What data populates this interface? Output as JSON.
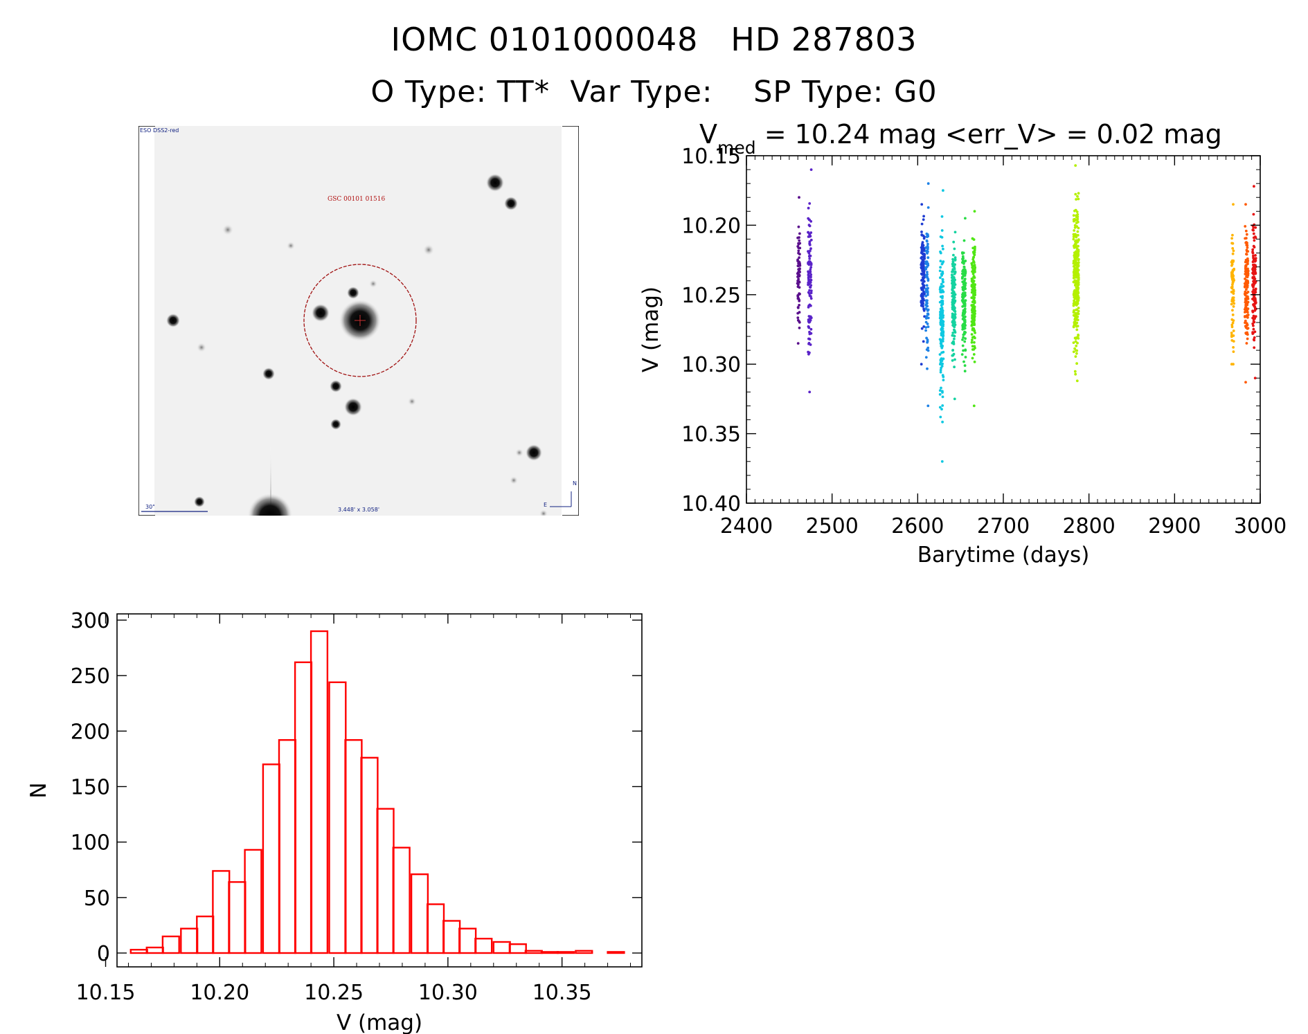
{
  "header": {
    "line1": "IOMC 0101000048   HD 287803",
    "line2": "O Type: TT*  Var Type:    SP Type: G0"
  },
  "image_panel": {
    "survey_label": "ESO DSS2-red",
    "target_label": "GSC 00101 01516",
    "scale_label": "30\"",
    "fov_label": "3.448' x 3.058'",
    "compass_n": "N",
    "compass_e": "E"
  },
  "colors": {
    "histogram": "#ff0000",
    "axis": "#000000",
    "circle": "#a01010",
    "annotation": "#102080"
  },
  "chart_data": [
    {
      "type": "scatter",
      "title": "V_med = 10.24 mag <err_V> = 0.02 mag",
      "title_parts": {
        "v": "V",
        "sub": "med",
        "rest": " = 10.24 mag <err_V> = 0.02 mag"
      },
      "xlabel": "Barytime (days)",
      "ylabel": "V (mag)",
      "xlim": [
        2400,
        3000
      ],
      "ylim": [
        10.4,
        10.15
      ],
      "y_inverted": true,
      "xticks": [
        2400,
        2500,
        2600,
        2700,
        2800,
        2900,
        3000
      ],
      "yticks": [
        "10.15",
        "10.20",
        "10.25",
        "10.30",
        "10.35",
        "10.40"
      ],
      "clusters": [
        {
          "x_center": 2461,
          "x_spread": 1.5,
          "y_min": 10.18,
          "y_max": 10.285,
          "y_center": 10.235,
          "n": 70,
          "color": "#5a0f8c"
        },
        {
          "x_center": 2474,
          "x_spread": 2.0,
          "y_min": 10.16,
          "y_max": 10.32,
          "y_center": 10.24,
          "n": 110,
          "color": "#5a23c8"
        },
        {
          "x_center": 2606,
          "x_spread": 2.0,
          "y_min": 10.185,
          "y_max": 10.3,
          "y_center": 10.235,
          "n": 130,
          "color": "#1e3cd2"
        },
        {
          "x_center": 2611,
          "x_spread": 1.5,
          "y_min": 10.17,
          "y_max": 10.33,
          "y_center": 10.245,
          "n": 90,
          "color": "#1e82e6"
        },
        {
          "x_center": 2628,
          "x_spread": 2.0,
          "y_min": 10.175,
          "y_max": 10.37,
          "y_center": 10.265,
          "n": 150,
          "color": "#0fc8e1"
        },
        {
          "x_center": 2642,
          "x_spread": 2.0,
          "y_min": 10.205,
          "y_max": 10.325,
          "y_center": 10.255,
          "n": 150,
          "color": "#14d2a0"
        },
        {
          "x_center": 2654,
          "x_spread": 2.0,
          "y_min": 10.195,
          "y_max": 10.305,
          "y_center": 10.255,
          "n": 150,
          "color": "#28dc46"
        },
        {
          "x_center": 2665,
          "x_spread": 2.0,
          "y_min": 10.19,
          "y_max": 10.33,
          "y_center": 10.255,
          "n": 150,
          "color": "#50e614"
        },
        {
          "x_center": 2785,
          "x_spread": 3.0,
          "y_min": 10.157,
          "y_max": 10.312,
          "y_center": 10.24,
          "n": 300,
          "color": "#b4f000"
        },
        {
          "x_center": 2968,
          "x_spread": 1.5,
          "y_min": 10.185,
          "y_max": 10.3,
          "y_center": 10.25,
          "n": 80,
          "color": "#ffb400"
        },
        {
          "x_center": 2984,
          "x_spread": 2.0,
          "y_min": 10.185,
          "y_max": 10.313,
          "y_center": 10.245,
          "n": 140,
          "color": "#ff5a00"
        },
        {
          "x_center": 2993,
          "x_spread": 2.0,
          "y_min": 10.172,
          "y_max": 10.31,
          "y_center": 10.24,
          "n": 140,
          "color": "#e61414"
        }
      ]
    },
    {
      "type": "bar",
      "title": "",
      "xlabel": "V (mag)",
      "ylabel": "N",
      "xlim": [
        10.155,
        10.385
      ],
      "ylim": [
        0,
        300
      ],
      "xticks": [
        "10.15",
        "10.20",
        "10.25",
        "10.30",
        "10.35"
      ],
      "yticks": [
        "0",
        "50",
        "100",
        "150",
        "200",
        "250",
        "300"
      ],
      "bin_width": 0.00722,
      "bin_starts": [
        10.161,
        10.168,
        10.175,
        10.183,
        10.19,
        10.197,
        10.204,
        10.211,
        10.219,
        10.226,
        10.233,
        10.24,
        10.248,
        10.255,
        10.262,
        10.269,
        10.276,
        10.284,
        10.291,
        10.298,
        10.305,
        10.312,
        10.32,
        10.327,
        10.334,
        10.341,
        10.348,
        10.356,
        10.363,
        10.37
      ],
      "values": [
        3,
        5,
        15,
        22,
        33,
        74,
        64,
        93,
        170,
        192,
        262,
        290,
        244,
        192,
        176,
        130,
        95,
        71,
        44,
        29,
        22,
        13,
        10,
        8,
        2,
        1,
        1,
        2,
        0,
        1
      ]
    }
  ]
}
